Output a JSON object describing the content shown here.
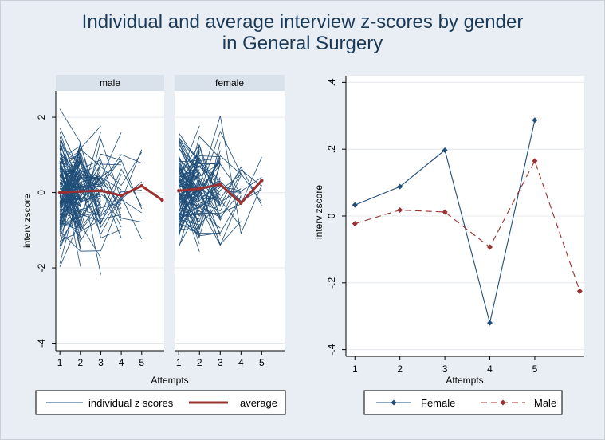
{
  "title_line1": "Individual and average interview z-scores by gender",
  "title_line2": "in General Surgery",
  "colors": {
    "background": "#e8eef3",
    "plot_bg": "#ffffff",
    "individual": "#1f4e79",
    "average": "#9b3030",
    "female": "#1f4e79",
    "male": "#9b3030",
    "text": "#1b3a57",
    "grid": "#e4e9ee",
    "facet_header": "#d9e2ea"
  },
  "chart_data": [
    {
      "type": "line",
      "panels": [
        "male",
        "female"
      ],
      "xlabel": "Attempts",
      "ylabel": "interv zscore",
      "x_ticks": [
        1,
        2,
        3,
        4,
        5
      ],
      "y_ticks": [
        -4,
        -2,
        0,
        2
      ],
      "xlim": [
        0.8,
        6.1
      ],
      "ylim": [
        -4.2,
        2.7
      ],
      "grid": true,
      "legend": {
        "position": "bottom",
        "entries": [
          "individual z scores",
          "average"
        ]
      },
      "series": [
        {
          "panel": "male",
          "role": "average",
          "x": [
            1,
            2,
            3,
            4,
            5,
            6
          ],
          "y": [
            0.0,
            0.03,
            0.05,
            -0.08,
            0.18,
            -0.2
          ]
        },
        {
          "panel": "female",
          "role": "average",
          "x": [
            1,
            2,
            3,
            4,
            5
          ],
          "y": [
            0.05,
            0.1,
            0.22,
            -0.28,
            0.32
          ]
        }
      ]
    },
    {
      "type": "line",
      "xlabel": "Attempts",
      "ylabel": "interv zscore",
      "x_ticks": [
        1,
        2,
        3,
        4,
        5
      ],
      "y_ticks": [
        -0.4,
        -0.2,
        0,
        0.2,
        0.4
      ],
      "y_tick_labels": [
        "-.4",
        "-.2",
        "0",
        ".2",
        ".4"
      ],
      "xlim": [
        0.8,
        6.1
      ],
      "ylim": [
        -0.42,
        0.42
      ],
      "grid": true,
      "legend": {
        "position": "bottom",
        "entries": [
          "Female",
          "Male"
        ]
      },
      "series": [
        {
          "name": "Female",
          "x": [
            1,
            2,
            3,
            4,
            5
          ],
          "y": [
            0.033,
            0.088,
            0.197,
            -0.32,
            0.287
          ]
        },
        {
          "name": "Male",
          "x": [
            1,
            2,
            3,
            4,
            5,
            6
          ],
          "y": [
            -0.023,
            0.018,
            0.012,
            -0.093,
            0.165,
            -0.225
          ]
        }
      ]
    }
  ]
}
